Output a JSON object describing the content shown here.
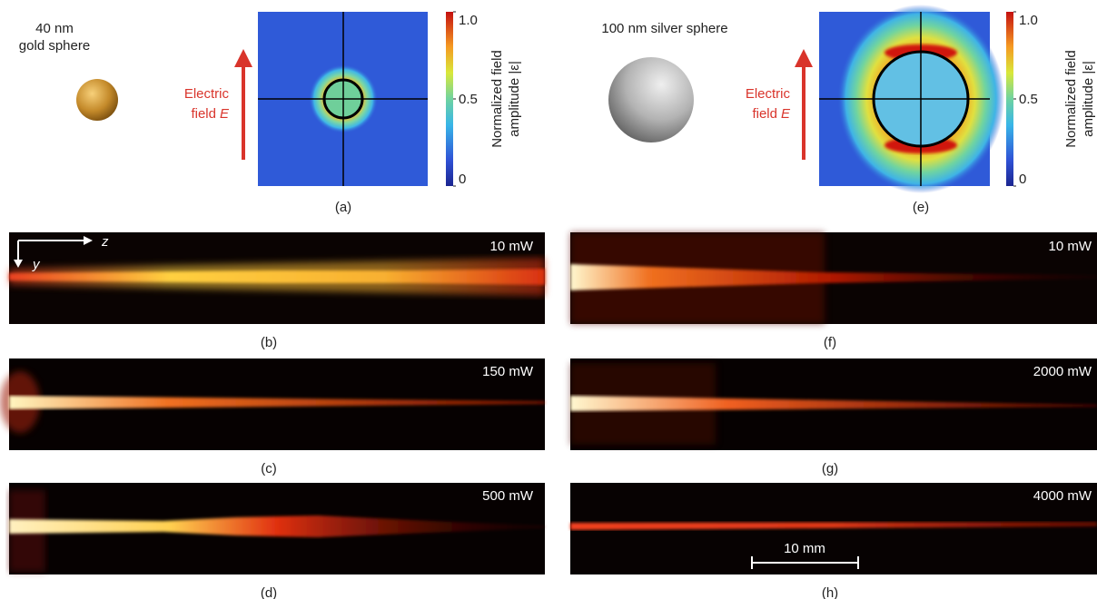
{
  "top": [
    {
      "label": "(a)",
      "particle": [
        "40 nm",
        "gold sphere"
      ],
      "field": {
        "line1": "Electric",
        "line2": "field",
        "symbol": "E"
      },
      "colorbar": {
        "ticks": [
          {
            "value": 1,
            "label": "1.0"
          },
          0.5,
          0
        ],
        "title": [
          "Normalized field",
          "amplitude |ε|"
        ]
      }
    },
    {
      "label": "(e)",
      "particle": [
        "100 nm silver sphere"
      ],
      "field": {
        "line1": "Electric",
        "line2": "field",
        "symbol": "E"
      },
      "colorbar": {
        "ticks": [
          {
            "value": 1,
            "label": "1.0"
          },
          0.5,
          0
        ],
        "title": [
          "Normalized field",
          "amplitude |ε|"
        ]
      }
    }
  ],
  "axes": {
    "z": "z",
    "y": "y"
  },
  "strips": [
    {
      "label": "(b)",
      "power": "10 mW"
    },
    {
      "label": "(c)",
      "power": "150 mW"
    },
    {
      "label": "(d)",
      "power": "500 mW"
    },
    {
      "label": "(f)",
      "power": "10 mW"
    },
    {
      "label": "(g)",
      "power": "2000 mW"
    },
    {
      "label": "(h)",
      "power": "4000 mW"
    }
  ],
  "scale_bar": "10 mm"
}
